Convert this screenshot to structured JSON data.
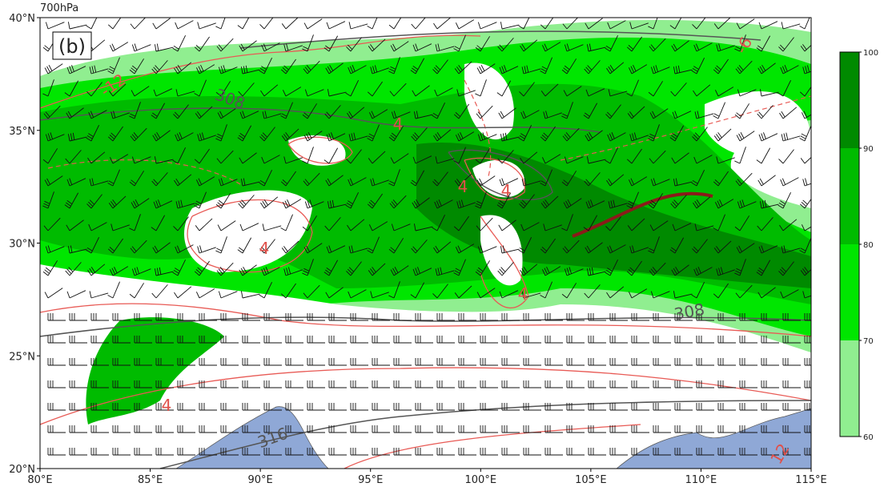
{
  "map": {
    "header": "700hPa",
    "panel_label": "(b)",
    "xticks": [
      {
        "value": 80,
        "label": "80°E"
      },
      {
        "value": 85,
        "label": "85°E"
      },
      {
        "value": 90,
        "label": "90°E"
      },
      {
        "value": 95,
        "label": "95°E"
      },
      {
        "value": 100,
        "label": "100°E"
      },
      {
        "value": 105,
        "label": "105°E"
      },
      {
        "value": 110,
        "label": "110°E"
      },
      {
        "value": 115,
        "label": "115°E"
      }
    ],
    "yticks": [
      {
        "value": 20,
        "label": "20°N"
      },
      {
        "value": 25,
        "label": "25°N"
      },
      {
        "value": 30,
        "label": "30°N"
      },
      {
        "value": 35,
        "label": "35°N"
      },
      {
        "value": 40,
        "label": "40°N"
      }
    ],
    "xlim": [
      80,
      115
    ],
    "ylim": [
      20,
      40
    ],
    "colorbar": {
      "levels": [
        60,
        70,
        80,
        90,
        100
      ],
      "colors": [
        "#90ee90",
        "#00e600",
        "#00bb00",
        "#008a00"
      ]
    },
    "contour_labels": [
      "-12",
      "308",
      "4",
      "4",
      "4",
      "4",
      "4",
      "308",
      "4",
      "316",
      "12",
      "-6"
    ]
  }
}
